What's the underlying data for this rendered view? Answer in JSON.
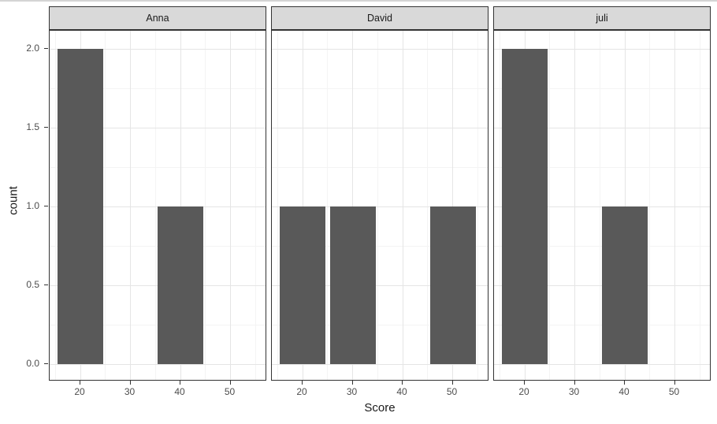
{
  "chart_data": {
    "type": "bar",
    "subtype": "faceted-histogram",
    "title": "",
    "xlabel": "Score",
    "ylabel": "count",
    "facets": [
      {
        "label": "Anna",
        "bars": [
          {
            "x": 20,
            "count": 2
          },
          {
            "x": 40,
            "count": 1
          }
        ]
      },
      {
        "label": "David",
        "bars": [
          {
            "x": 20,
            "count": 1
          },
          {
            "x": 30,
            "count": 1
          },
          {
            "x": 50,
            "count": 1
          }
        ]
      },
      {
        "label": "juli",
        "bars": [
          {
            "x": 20,
            "count": 2
          },
          {
            "x": 40,
            "count": 1
          }
        ]
      }
    ],
    "x_ticks": [
      20,
      30,
      40,
      50
    ],
    "x_minor_ticks": [
      15,
      25,
      35,
      45,
      55
    ],
    "y_ticks": [
      0.0,
      0.5,
      1.0,
      1.5,
      2.0
    ],
    "y_tick_labels": [
      "0.0",
      "0.5",
      "1.0",
      "1.5",
      "2.0"
    ],
    "y_minor_ticks": [
      0.25,
      0.75,
      1.25,
      1.75
    ],
    "xlim": [
      13.9,
      57.3
    ],
    "ylim": [
      -0.11,
      2.12
    ],
    "bar_width_units": 9,
    "grid": "major-and-minor",
    "legend": "none",
    "colors": {
      "bar_fill": "#595959",
      "strip_fill": "#d9d9d9",
      "strip_border": "#333333",
      "panel_border": "#333333",
      "panel_bg": "#ffffff",
      "grid_major": "#e5e5e5",
      "grid_minor": "#f4f4f4",
      "tick_mark": "#333333",
      "tick_label": "#4d4d4d",
      "axis_title": "#1a1a1a",
      "top_rule": "#d4d4d4"
    }
  }
}
